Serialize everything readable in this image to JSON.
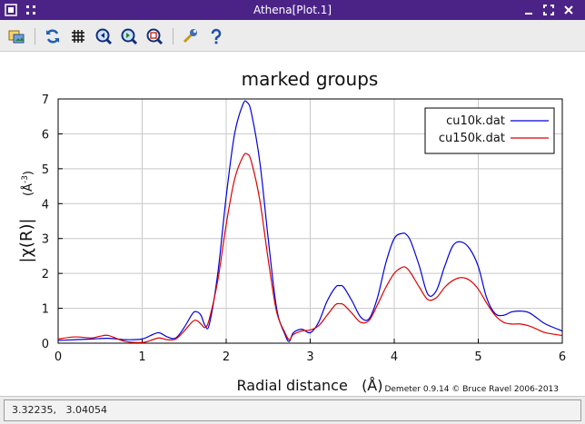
{
  "window": {
    "title": "Athena[Plot.1]"
  },
  "titlebar_icons": [
    "app-menu-icon",
    "pin-icon",
    "minimize-icon",
    "maximize-icon",
    "close-icon"
  ],
  "toolbar": {
    "items": [
      {
        "name": "save-image-button",
        "icon": "save-image-icon"
      },
      {
        "name": "refresh-button",
        "icon": "refresh-icon"
      },
      {
        "name": "grid-toggle-button",
        "icon": "grid-icon"
      },
      {
        "name": "zoom-in-button",
        "icon": "zoom-in-icon"
      },
      {
        "name": "zoom-out-button",
        "icon": "zoom-out-icon"
      },
      {
        "name": "zoom-fit-button",
        "icon": "zoom-fit-icon"
      },
      {
        "name": "configure-button",
        "icon": "wrench-icon"
      },
      {
        "name": "help-button",
        "icon": "help-icon"
      }
    ]
  },
  "status": {
    "text": "3.32235,   3.04054"
  },
  "footer": {
    "credit": "Demeter 0.9.14 © Bruce Ravel 2006-2013"
  },
  "colors": {
    "titlebar": "#4b2387",
    "series1": "#0000dd",
    "series2": "#dd0000"
  },
  "chart_data": {
    "type": "line",
    "title": "marked groups",
    "xlabel": "Radial distance   (Å)",
    "ylabel": "|χ(R)|",
    "yunit": "(Å-3)",
    "xlim": [
      0,
      6
    ],
    "ylim": [
      0,
      7
    ],
    "xticks": [
      "0",
      "1",
      "2",
      "3",
      "4",
      "5",
      "6"
    ],
    "yticks": [
      "0",
      "1",
      "2",
      "3",
      "4",
      "5",
      "6",
      "7"
    ],
    "grid": true,
    "legend_position": "top-right",
    "series": [
      {
        "name": "cu10k.dat",
        "color": "#0000dd",
        "x": [
          0,
          0.2,
          0.4,
          0.6,
          0.8,
          1.0,
          1.1,
          1.2,
          1.3,
          1.4,
          1.5,
          1.6,
          1.65,
          1.7,
          1.75,
          1.8,
          1.9,
          2.0,
          2.1,
          2.2,
          2.25,
          2.3,
          2.4,
          2.5,
          2.6,
          2.7,
          2.75,
          2.8,
          2.9,
          3.0,
          3.1,
          3.2,
          3.3,
          3.35,
          3.4,
          3.5,
          3.6,
          3.7,
          3.8,
          3.9,
          4.0,
          4.1,
          4.15,
          4.2,
          4.3,
          4.4,
          4.5,
          4.6,
          4.7,
          4.8,
          4.9,
          5.0,
          5.1,
          5.2,
          5.3,
          5.4,
          5.5,
          5.6,
          5.7,
          5.8,
          6.0
        ],
        "y": [
          0.08,
          0.1,
          0.12,
          0.14,
          0.1,
          0.12,
          0.22,
          0.3,
          0.18,
          0.15,
          0.45,
          0.85,
          0.9,
          0.8,
          0.5,
          0.55,
          2.0,
          4.2,
          6.0,
          6.85,
          6.9,
          6.6,
          5.2,
          3.0,
          1.0,
          0.25,
          0.05,
          0.3,
          0.4,
          0.3,
          0.6,
          1.2,
          1.6,
          1.65,
          1.6,
          1.2,
          0.75,
          0.7,
          1.3,
          2.3,
          3.0,
          3.15,
          3.1,
          2.9,
          2.2,
          1.4,
          1.5,
          2.2,
          2.8,
          2.9,
          2.7,
          2.2,
          1.3,
          0.85,
          0.8,
          0.9,
          0.92,
          0.88,
          0.72,
          0.55,
          0.35
        ]
      },
      {
        "name": "cu150k.dat",
        "color": "#dd0000",
        "x": [
          0,
          0.2,
          0.4,
          0.5,
          0.6,
          0.8,
          1.0,
          1.1,
          1.2,
          1.3,
          1.4,
          1.5,
          1.6,
          1.65,
          1.7,
          1.75,
          1.8,
          1.9,
          2.0,
          2.1,
          2.2,
          2.25,
          2.3,
          2.4,
          2.5,
          2.6,
          2.7,
          2.75,
          2.8,
          2.9,
          3.0,
          3.1,
          3.2,
          3.3,
          3.35,
          3.4,
          3.5,
          3.6,
          3.7,
          3.8,
          3.9,
          4.0,
          4.1,
          4.15,
          4.2,
          4.3,
          4.4,
          4.5,
          4.6,
          4.7,
          4.8,
          4.9,
          5.0,
          5.1,
          5.2,
          5.3,
          5.4,
          5.5,
          5.6,
          5.7,
          5.8,
          6.0
        ],
        "y": [
          0.12,
          0.18,
          0.15,
          0.2,
          0.22,
          0.05,
          0.02,
          0.08,
          0.15,
          0.1,
          0.12,
          0.35,
          0.62,
          0.65,
          0.55,
          0.45,
          0.7,
          1.8,
          3.4,
          4.7,
          5.35,
          5.42,
          5.2,
          4.1,
          2.4,
          0.9,
          0.3,
          0.1,
          0.25,
          0.35,
          0.38,
          0.5,
          0.8,
          1.1,
          1.13,
          1.1,
          0.85,
          0.6,
          0.65,
          1.1,
          1.6,
          2.0,
          2.18,
          2.15,
          2.0,
          1.6,
          1.25,
          1.3,
          1.6,
          1.8,
          1.88,
          1.8,
          1.55,
          1.15,
          0.8,
          0.6,
          0.55,
          0.55,
          0.5,
          0.4,
          0.3,
          0.22
        ]
      }
    ]
  }
}
